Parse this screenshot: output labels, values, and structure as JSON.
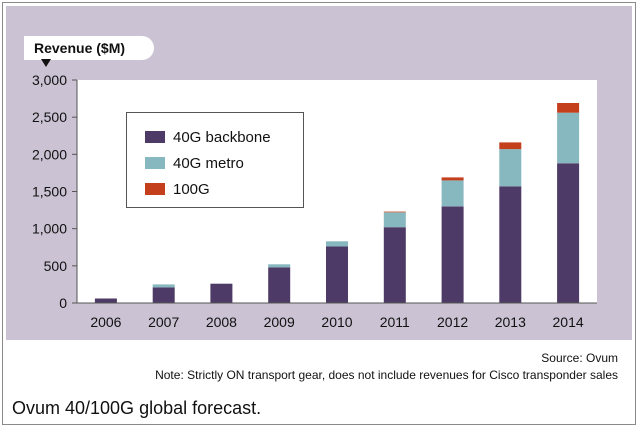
{
  "chart_data": {
    "type": "bar",
    "stacked": true,
    "ylabel": "Revenue ($M)",
    "xlabel": "",
    "ylim": [
      0,
      3000
    ],
    "yticks": [
      0,
      500,
      1000,
      1500,
      2000,
      2500,
      3000
    ],
    "ytick_labels": [
      "0",
      "500",
      "1,000",
      "1,500",
      "2,000",
      "2,500",
      "3,000"
    ],
    "categories": [
      "2006",
      "2007",
      "2008",
      "2009",
      "2010",
      "2011",
      "2012",
      "2013",
      "2014"
    ],
    "series": [
      {
        "name": "40G backbone",
        "color": "#4e3a66",
        "values": [
          60,
          210,
          260,
          480,
          760,
          1020,
          1300,
          1570,
          1880
        ]
      },
      {
        "name": "40G metro",
        "color": "#88b8bf",
        "values": [
          0,
          40,
          0,
          40,
          70,
          200,
          350,
          500,
          680
        ]
      },
      {
        "name": "100G",
        "color": "#c43f1c",
        "values": [
          0,
          0,
          0,
          0,
          0,
          10,
          40,
          90,
          130
        ]
      }
    ],
    "legend_position": "top-left",
    "grid": false
  },
  "source": "Source: Ovum",
  "note": "Note: Strictly ON transport gear, does not include revenues for Cisco transponder sales",
  "caption": "Ovum 40/100G global forecast.",
  "colors": {
    "panel_background": "#cbc2d3",
    "plot_background": "#ffffff"
  }
}
